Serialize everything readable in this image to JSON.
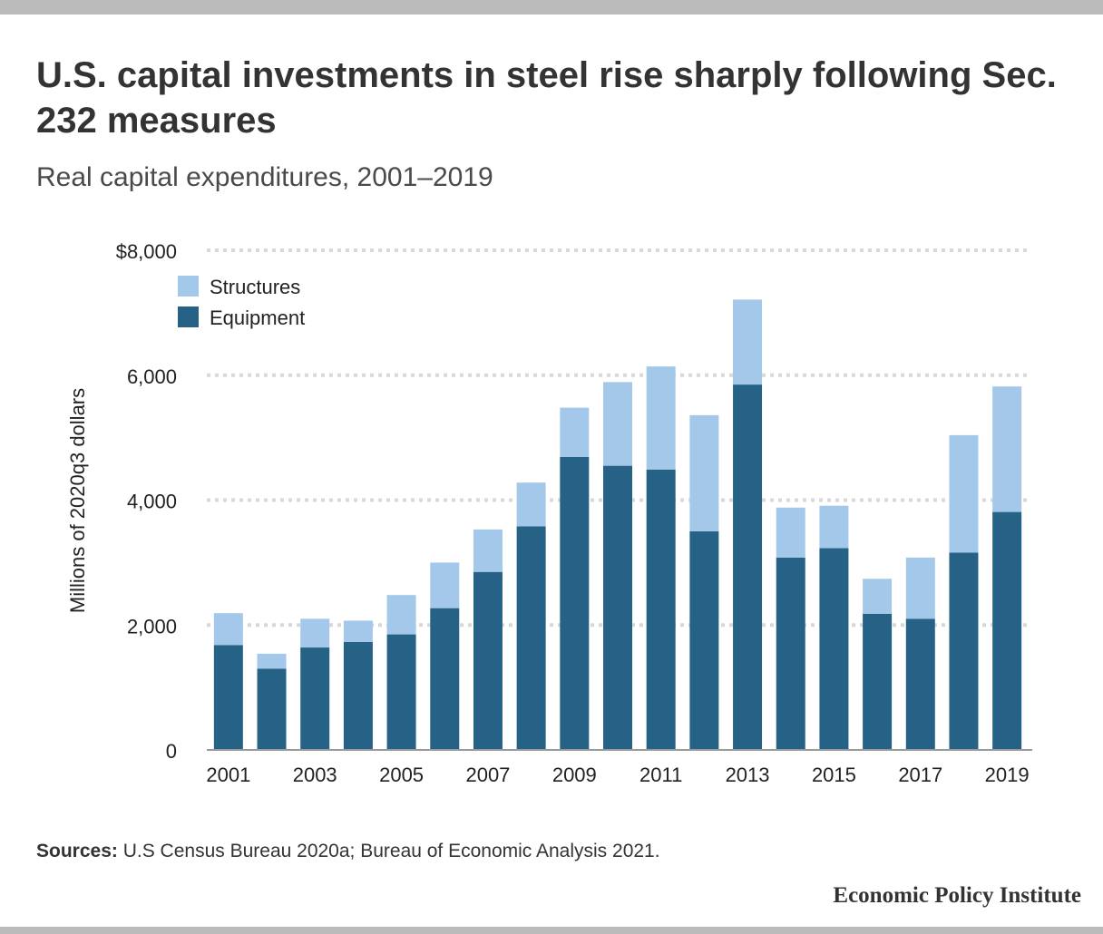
{
  "title": "U.S. capital investments in steel rise sharply following Sec. 232 measures",
  "subtitle": "Real capital expenditures, 2001–2019",
  "sources_label": "Sources:",
  "sources_text": " U.S Census Bureau 2020a; Bureau of Economic Analysis 2021.",
  "logo_text": "Economic Policy Institute",
  "colors": {
    "structures": "#a3c8e9",
    "equipment": "#256286",
    "grid": "#d8d8d8",
    "axis": "#999999"
  },
  "chart_data": {
    "type": "bar",
    "stacked": true,
    "categories": [
      "2001",
      "2002",
      "2003",
      "2004",
      "2005",
      "2006",
      "2007",
      "2008",
      "2009",
      "2010",
      "2011",
      "2012",
      "2013",
      "2014",
      "2015",
      "2016",
      "2017",
      "2018",
      "2019"
    ],
    "x_tick_labels": [
      "2001",
      "",
      "2003",
      "",
      "2005",
      "",
      "2007",
      "",
      "2009",
      "",
      "2011",
      "",
      "2013",
      "",
      "2015",
      "",
      "2017",
      "",
      "2019"
    ],
    "series": [
      {
        "name": "Equipment",
        "values": [
          1680,
          1300,
          1640,
          1730,
          1850,
          2270,
          2850,
          3580,
          4690,
          4550,
          4490,
          3500,
          5850,
          3080,
          3230,
          2180,
          2100,
          3160,
          3810
        ]
      },
      {
        "name": "Structures",
        "values": [
          510,
          240,
          460,
          340,
          630,
          730,
          680,
          700,
          790,
          1340,
          1650,
          1860,
          1360,
          800,
          680,
          560,
          980,
          1880,
          2010
        ]
      }
    ],
    "legend": [
      "Structures",
      "Equipment"
    ],
    "legend_position": "top-left",
    "ylabel": "Millions of 2020q3 dollars",
    "ylim": [
      0,
      8000
    ],
    "y_ticks": [
      0,
      2000,
      4000,
      6000,
      8000
    ],
    "y_tick_labels": [
      "0",
      "2,000",
      "4,000",
      "6,000",
      "$8,000"
    ],
    "grid": true
  }
}
